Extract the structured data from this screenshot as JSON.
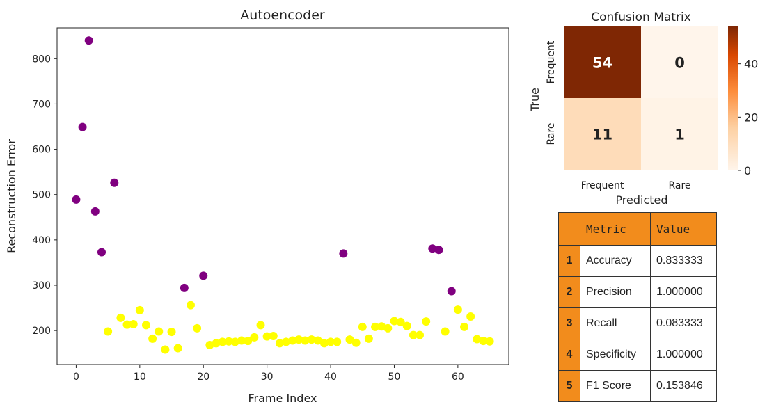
{
  "colors": {
    "anomaly": "#800080",
    "normal": "#ffff00",
    "table_header": "#f28c1c",
    "cm_dark": "#7f2704",
    "cm_light": "#fff5eb"
  },
  "chart_data": [
    {
      "type": "scatter",
      "title": "Autoencoder",
      "xlabel": "Frame Index",
      "ylabel": "Reconstruction Error",
      "xlim": [
        -3,
        68
      ],
      "ylim": [
        125,
        868
      ],
      "xticks": [
        0,
        10,
        20,
        30,
        40,
        50,
        60
      ],
      "yticks": [
        200,
        300,
        400,
        500,
        600,
        700,
        800
      ],
      "grid": false,
      "series": [
        {
          "color": "purple",
          "x": [
            0,
            1,
            2,
            3,
            4,
            6,
            17,
            20,
            42,
            56,
            57,
            59
          ],
          "y": [
            489,
            649,
            840,
            463,
            373,
            526,
            294,
            321,
            370,
            381,
            378,
            287
          ]
        },
        {
          "color": "yellow",
          "x": [
            5,
            7,
            8,
            9,
            10,
            11,
            12,
            13,
            14,
            15,
            16,
            18,
            19,
            21,
            22,
            23,
            24,
            25,
            26,
            27,
            28,
            29,
            30,
            31,
            32,
            33,
            34,
            35,
            36,
            37,
            38,
            39,
            40,
            41,
            43,
            44,
            45,
            46,
            47,
            48,
            49,
            50,
            51,
            52,
            53,
            54,
            55,
            58,
            60,
            61,
            62,
            63,
            64,
            65
          ],
          "y": [
            198,
            228,
            213,
            214,
            245,
            212,
            182,
            198,
            158,
            197,
            161,
            256,
            205,
            168,
            172,
            175,
            176,
            175,
            178,
            177,
            185,
            212,
            187,
            188,
            172,
            175,
            178,
            180,
            178,
            180,
            178,
            172,
            175,
            175,
            180,
            173,
            208,
            182,
            208,
            209,
            205,
            221,
            219,
            210,
            190,
            190,
            220,
            198,
            246,
            208,
            231,
            181,
            177,
            176
          ]
        }
      ]
    },
    {
      "type": "heatmap",
      "title": "Confusion Matrix",
      "xlabel": "Predicted",
      "ylabel": "True",
      "row_labels": [
        "Frequent",
        "Rare"
      ],
      "col_labels": [
        "Frequent",
        "Rare"
      ],
      "values": [
        [
          54,
          0
        ],
        [
          11,
          1
        ]
      ],
      "colorbar": {
        "min": 0,
        "max": 54,
        "ticks": [
          0,
          20,
          40
        ],
        "cmap": "Oranges"
      }
    },
    {
      "type": "table",
      "columns": [
        "",
        "Metric",
        "Value"
      ],
      "rows": [
        [
          "1",
          "Accuracy",
          "0.833333"
        ],
        [
          "2",
          "Precision",
          "1.000000"
        ],
        [
          "3",
          "Recall",
          "0.083333"
        ],
        [
          "4",
          "Specificity",
          "1.000000"
        ],
        [
          "5",
          "F1 Score",
          "0.153846"
        ]
      ]
    }
  ]
}
